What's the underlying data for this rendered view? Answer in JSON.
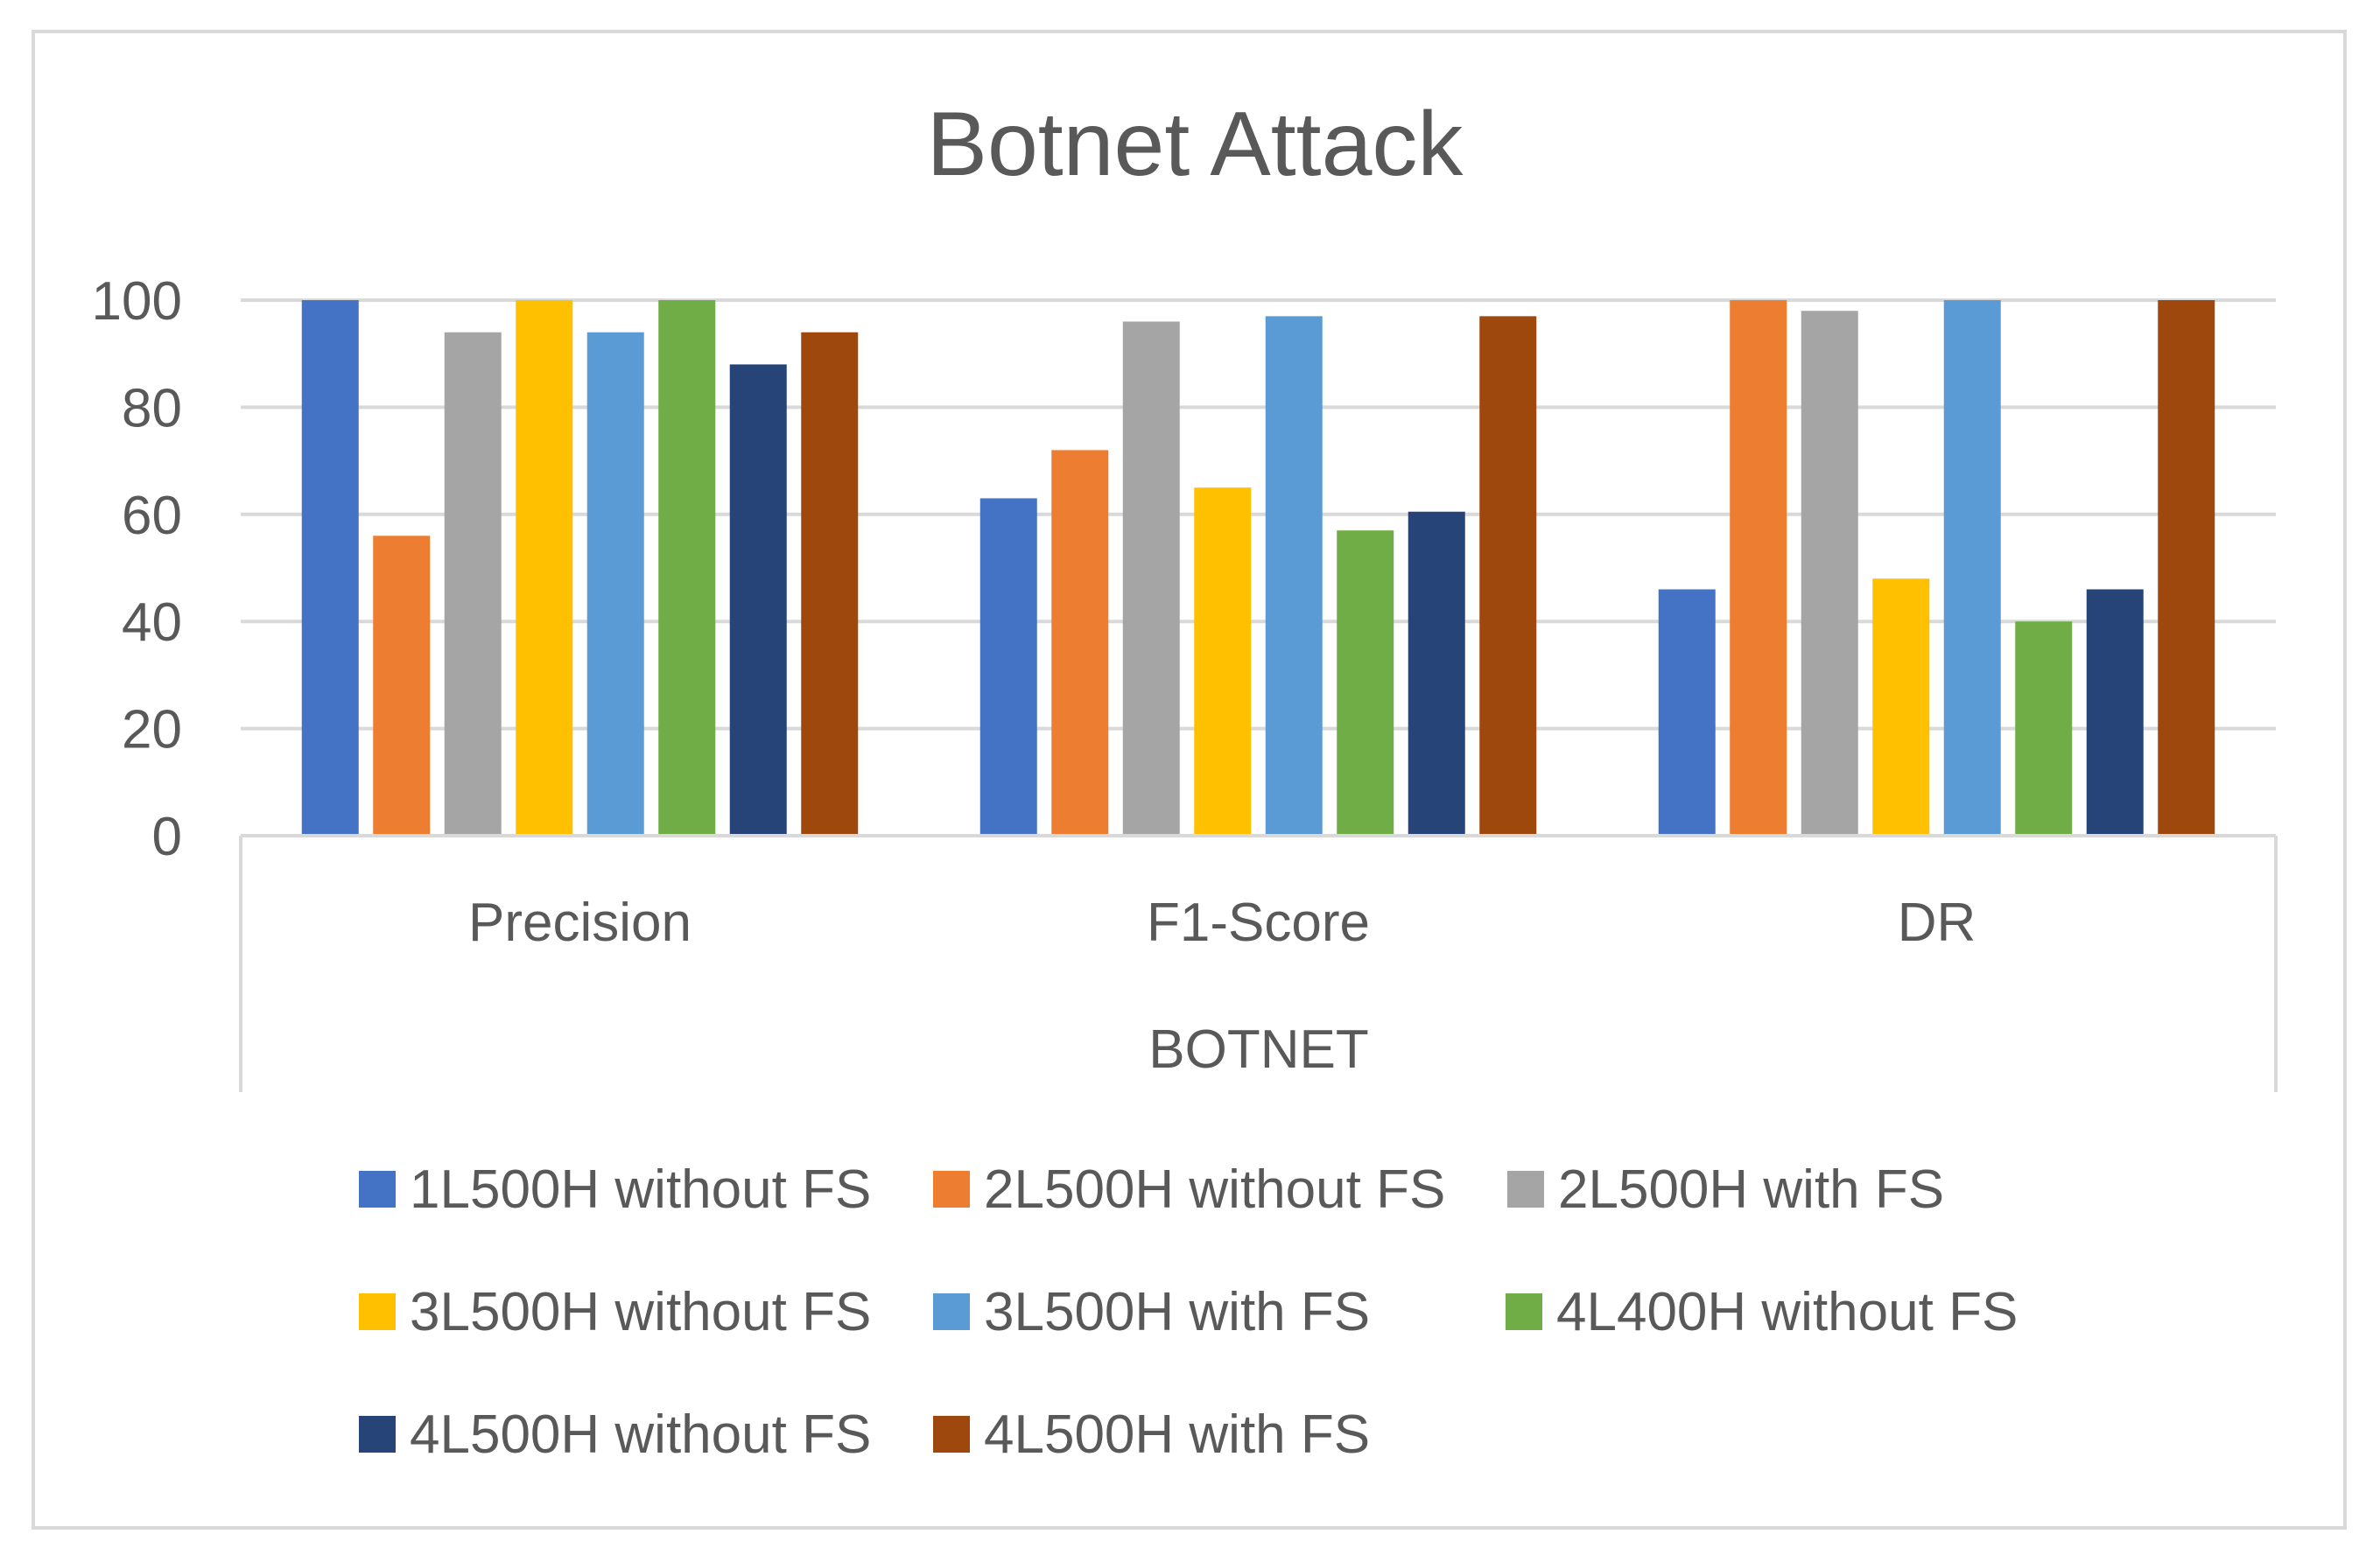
{
  "chart_data": {
    "type": "bar",
    "title": "Botnet Attack",
    "xlabel": "BOTNET",
    "ylabel": "",
    "categories": [
      "Precision",
      "F1-Score",
      "DR"
    ],
    "ylim": [
      0,
      100
    ],
    "yticks": [
      0,
      20,
      40,
      60,
      80,
      100
    ],
    "grid": true,
    "legend_position": "bottom",
    "series": [
      {
        "name": "1L500H without FS",
        "color": "#4472C4",
        "values": [
          100,
          63,
          46
        ]
      },
      {
        "name": "2L500H without FS",
        "color": "#ED7D31",
        "values": [
          56,
          72,
          100
        ]
      },
      {
        "name": "2L500H with FS",
        "color": "#A5A5A5",
        "values": [
          94,
          96,
          98
        ]
      },
      {
        "name": "3L500H without FS",
        "color": "#FFC000",
        "values": [
          100,
          65,
          48
        ]
      },
      {
        "name": "3L500H with FS",
        "color": "#5B9BD5",
        "values": [
          94,
          97,
          100
        ]
      },
      {
        "name": "4L400H without FS",
        "color": "#70AD47",
        "values": [
          100,
          57,
          40
        ]
      },
      {
        "name": "4L500H without FS",
        "color": "#264478",
        "values": [
          88,
          60.5,
          46
        ]
      },
      {
        "name": "4L500H with FS",
        "color": "#9E480E",
        "values": [
          94,
          97,
          100
        ]
      }
    ]
  }
}
